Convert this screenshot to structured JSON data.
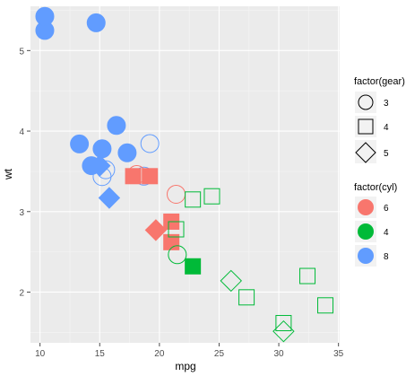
{
  "chart_data": {
    "type": "scatter",
    "title": "",
    "xlabel": "mpg",
    "ylabel": "wt",
    "xlim": [
      9.2,
      35.1
    ],
    "ylim": [
      1.37,
      5.55
    ],
    "x_ticks": [
      10,
      15,
      20,
      25,
      30,
      35
    ],
    "y_ticks": [
      2,
      3,
      4,
      5
    ],
    "grid": true,
    "legend_position": "right",
    "legends": [
      {
        "title": "factor(gear)",
        "aesthetic": "shape",
        "entries": [
          {
            "label": "3",
            "shape": "circle"
          },
          {
            "label": "4",
            "shape": "square"
          },
          {
            "label": "5",
            "shape": "diamond"
          }
        ]
      },
      {
        "title": "factor(cyl)",
        "aesthetic": "color",
        "entries": [
          {
            "label": "6",
            "color": "#F8766D"
          },
          {
            "label": "4",
            "color": "#00BA38"
          },
          {
            "label": "8",
            "color": "#619CFF"
          }
        ]
      }
    ],
    "colors": {
      "6": "#F8766D",
      "4": "#00BA38",
      "8": "#619CFF"
    },
    "points": [
      {
        "x": 21.0,
        "y": 2.62,
        "cyl": "6",
        "gear": "4",
        "size": 6
      },
      {
        "x": 21.0,
        "y": 2.875,
        "cyl": "6",
        "gear": "4",
        "size": 6
      },
      {
        "x": 22.8,
        "y": 2.32,
        "cyl": "4",
        "gear": "4",
        "size": 4
      },
      {
        "x": 21.4,
        "y": 3.215,
        "cyl": "6",
        "gear": "3",
        "size": 1
      },
      {
        "x": 18.7,
        "y": 3.44,
        "cyl": "8",
        "gear": "3",
        "size": 2
      },
      {
        "x": 18.1,
        "y": 3.46,
        "cyl": "6",
        "gear": "3",
        "size": 1
      },
      {
        "x": 14.3,
        "y": 3.57,
        "cyl": "8",
        "gear": "3",
        "size": 4
      },
      {
        "x": 24.4,
        "y": 3.19,
        "cyl": "4",
        "gear": "4",
        "size": 2
      },
      {
        "x": 22.8,
        "y": 3.15,
        "cyl": "4",
        "gear": "4",
        "size": 2
      },
      {
        "x": 19.2,
        "y": 3.44,
        "cyl": "6",
        "gear": "4",
        "size": 4
      },
      {
        "x": 17.8,
        "y": 3.44,
        "cyl": "6",
        "gear": "4",
        "size": 4
      },
      {
        "x": 16.4,
        "y": 4.07,
        "cyl": "8",
        "gear": "3",
        "size": 3
      },
      {
        "x": 17.3,
        "y": 3.73,
        "cyl": "8",
        "gear": "3",
        "size": 3
      },
      {
        "x": 15.2,
        "y": 3.78,
        "cyl": "8",
        "gear": "3",
        "size": 3
      },
      {
        "x": 10.4,
        "y": 5.25,
        "cyl": "8",
        "gear": "3",
        "size": 4
      },
      {
        "x": 10.4,
        "y": 5.424,
        "cyl": "8",
        "gear": "3",
        "size": 4
      },
      {
        "x": 14.7,
        "y": 5.345,
        "cyl": "8",
        "gear": "3",
        "size": 4
      },
      {
        "x": 32.4,
        "y": 2.2,
        "cyl": "4",
        "gear": "4",
        "size": 1
      },
      {
        "x": 30.4,
        "y": 1.615,
        "cyl": "4",
        "gear": "4",
        "size": 2
      },
      {
        "x": 33.9,
        "y": 1.835,
        "cyl": "4",
        "gear": "4",
        "size": 1
      },
      {
        "x": 21.5,
        "y": 2.465,
        "cyl": "4",
        "gear": "3",
        "size": 1
      },
      {
        "x": 15.5,
        "y": 3.52,
        "cyl": "8",
        "gear": "3",
        "size": 2
      },
      {
        "x": 15.2,
        "y": 3.435,
        "cyl": "8",
        "gear": "3",
        "size": 2
      },
      {
        "x": 13.3,
        "y": 3.84,
        "cyl": "8",
        "gear": "3",
        "size": 4
      },
      {
        "x": 19.2,
        "y": 3.845,
        "cyl": "8",
        "gear": "3",
        "size": 2
      },
      {
        "x": 27.3,
        "y": 1.935,
        "cyl": "4",
        "gear": "4",
        "size": 1
      },
      {
        "x": 26.0,
        "y": 2.14,
        "cyl": "4",
        "gear": "5",
        "size": 2
      },
      {
        "x": 30.4,
        "y": 1.513,
        "cyl": "4",
        "gear": "5",
        "size": 2
      },
      {
        "x": 15.8,
        "y": 3.17,
        "cyl": "8",
        "gear": "5",
        "size": 4
      },
      {
        "x": 19.7,
        "y": 2.77,
        "cyl": "6",
        "gear": "5",
        "size": 6
      },
      {
        "x": 15.0,
        "y": 3.57,
        "cyl": "8",
        "gear": "5",
        "size": 8
      },
      {
        "x": 21.4,
        "y": 2.78,
        "cyl": "4",
        "gear": "4",
        "size": 2
      }
    ]
  }
}
